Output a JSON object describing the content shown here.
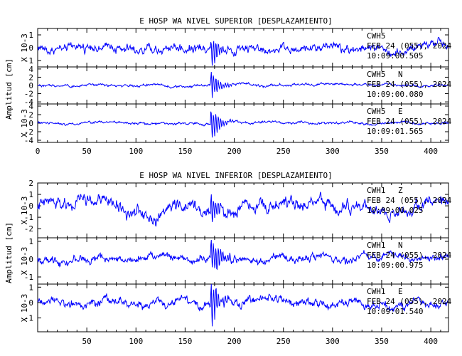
{
  "chart_data": [
    {
      "type": "line",
      "title": "E HOSP WA NIVEL SUPERIOR [DESPLAZAMIENTO]",
      "ylabel": "Amplitud [cm]",
      "x_ticks": [
        0,
        50,
        100,
        150,
        200,
        250,
        300,
        350,
        400
      ],
      "x_ticks_shown": true,
      "xlim": [
        0,
        418
      ],
      "event_time": 176,
      "series_color": "#0000ff",
      "panels": [
        {
          "name": "CWH5 Z",
          "station": "CWH5",
          "component": "",
          "date": "FEB 24 (055), 2024",
          "time": "10:09:00.505",
          "unit": "X 10-3",
          "ylim": [
            -1.5,
            1.5
          ],
          "y_ticks": [
            -1,
            0,
            1
          ],
          "baseline": 0,
          "noise_amp": 0.75,
          "spike_amp": 1.3,
          "drift": 0.25
        },
        {
          "name": "CWH5 N",
          "station": "CWH5",
          "component": "N",
          "date": "FEB 24 (055), 2024",
          "time": "10:09:00.080",
          "unit": "",
          "ylim": [
            -4.5,
            4.5
          ],
          "y_ticks": [
            -4,
            -2,
            0,
            2,
            4
          ],
          "baseline": 0,
          "noise_amp": 0.6,
          "spike_amp": 3.2,
          "drift": 0.3
        },
        {
          "name": "CWH5 E",
          "station": "CWH5",
          "component": "E",
          "date": "FEB 24 (055), 2024",
          "time": "10:09:01.565",
          "unit": "X 10-3",
          "ylim": [
            -4.5,
            4.5
          ],
          "y_ticks": [
            -4,
            -2,
            0,
            2,
            4
          ],
          "baseline": 0,
          "noise_amp": 0.6,
          "spike_amp": 4.0,
          "drift": 0.3
        }
      ]
    },
    {
      "type": "line",
      "title": "E HOSP WA NIVEL INFERIOR [DESPLAZAMIENTO]",
      "ylabel": "Amplitud [cm]",
      "x_ticks": [
        50,
        100,
        150,
        200,
        250,
        300,
        350,
        400
      ],
      "x_ticks_shown": true,
      "xlim": [
        0,
        418
      ],
      "event_time": 176,
      "series_color": "#0000ff",
      "panels": [
        {
          "name": "CWH1 Z",
          "station": "CWH1",
          "component": "Z",
          "date": "FEB 24 (055), 2024",
          "time": "10:09:00.025",
          "unit": "X 10-3",
          "ylim": [
            -2.8,
            2.0
          ],
          "y_ticks": [
            -2,
            -1,
            0,
            1,
            2
          ],
          "baseline": 0,
          "noise_amp": 1.1,
          "spike_amp": 1.2,
          "drift": 0.6
        },
        {
          "name": "CWH1 N",
          "station": "CWH1",
          "component": "N",
          "date": "FEB 24 (055), 2024",
          "time": "10:09:00.975",
          "unit": "X 10-3",
          "ylim": [
            -1.4,
            1.2
          ],
          "y_ticks": [
            -1,
            0,
            1
          ],
          "baseline": 0,
          "noise_amp": 0.45,
          "spike_amp": 1.3,
          "drift": 0.2
        },
        {
          "name": "CWH1 E",
          "station": "CWH1",
          "component": "E",
          "date": "FEB 24 (055), 2024",
          "time": "10:09:01.540",
          "unit": "X 10-3",
          "ylim": [
            -1.9,
            1.2
          ],
          "y_ticks": [
            -1,
            0,
            1
          ],
          "baseline": 0,
          "noise_amp": 0.55,
          "spike_amp": 1.5,
          "drift": 0.3
        }
      ]
    }
  ]
}
